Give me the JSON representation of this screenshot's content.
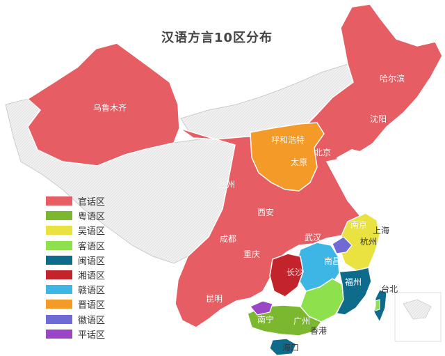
{
  "title": "汉语方言10区分布",
  "colors": {
    "guanhua": "#e65d63",
    "yue": "#7cb82f",
    "wu": "#e9e240",
    "kejia": "#8ee14d",
    "min": "#0e6b8c",
    "xiang": "#c3242b",
    "gan": "#3db6e6",
    "jin": "#f39a28",
    "hui": "#6f6ad4",
    "ping": "#9a46c6",
    "unclassified": "#eeeeee",
    "outline": "#ffffff"
  },
  "legend": [
    {
      "label": "官话区",
      "color_key": "guanhua"
    },
    {
      "label": "粤语区",
      "color_key": "yue"
    },
    {
      "label": "吴语区",
      "color_key": "wu"
    },
    {
      "label": "客语区",
      "color_key": "kejia"
    },
    {
      "label": "闽语区",
      "color_key": "min"
    },
    {
      "label": "湘语区",
      "color_key": "xiang"
    },
    {
      "label": "赣语区",
      "color_key": "gan"
    },
    {
      "label": "晋语区",
      "color_key": "jin"
    },
    {
      "label": "徽语区",
      "color_key": "hui"
    },
    {
      "label": "平话区",
      "color_key": "ping"
    }
  ],
  "cities": {
    "wulumuqi": "乌鲁木齐",
    "haerbin": "哈尔滨",
    "shenyang": "沈阳",
    "huhehaote": "呼和浩特",
    "beijing": "北京",
    "taiyuan": "太原",
    "lanzhou": "兰州",
    "xian": "西安",
    "nanjing": "南京",
    "shanghai": "上海",
    "chengdu": "成都",
    "wuhan": "武汉",
    "hangzhou": "杭州",
    "chongqing": "重庆",
    "nanchang": "南昌",
    "changsha": "长沙",
    "fuzhou": "福州",
    "taibei": "台北",
    "kunming": "昆明",
    "nanning": "南宁",
    "guangzhou": "广州",
    "xianggang": "香港",
    "haikou": "海口"
  }
}
